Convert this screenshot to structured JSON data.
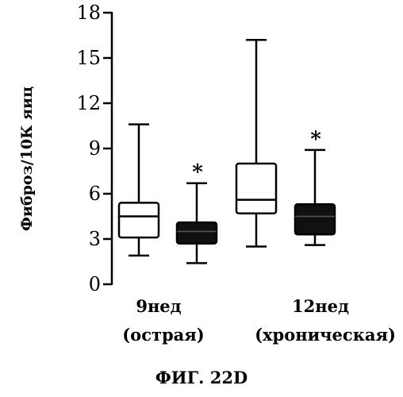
{
  "chart_data": {
    "type": "box",
    "ylabel": "Фиброз/10К яиц",
    "ylim": [
      0,
      18
    ],
    "yticks": [
      0,
      3,
      6,
      9,
      12,
      15,
      18
    ],
    "groups": [
      {
        "label_line1": "9нед",
        "label_line2": "(острая)"
      },
      {
        "label_line1": "12нед",
        "label_line2": "(хроническая)"
      }
    ],
    "boxes": [
      {
        "group": 0,
        "fill": "#ffffff",
        "whisker_low": 1.9,
        "q1": 3.1,
        "median": 4.5,
        "q3": 5.4,
        "whisker_high": 10.6,
        "marker": ""
      },
      {
        "group": 0,
        "fill": "#111111",
        "whisker_low": 1.4,
        "q1": 2.7,
        "median": 3.5,
        "q3": 4.1,
        "whisker_high": 6.7,
        "marker": "*"
      },
      {
        "group": 1,
        "fill": "#ffffff",
        "whisker_low": 2.5,
        "q1": 4.7,
        "median": 5.6,
        "q3": 8.0,
        "whisker_high": 16.2,
        "marker": ""
      },
      {
        "group": 1,
        "fill": "#111111",
        "whisker_low": 2.6,
        "q1": 3.3,
        "median": 4.5,
        "q3": 5.3,
        "whisker_high": 8.9,
        "marker": "*"
      }
    ],
    "figure_label": "ФИГ. 22D"
  }
}
